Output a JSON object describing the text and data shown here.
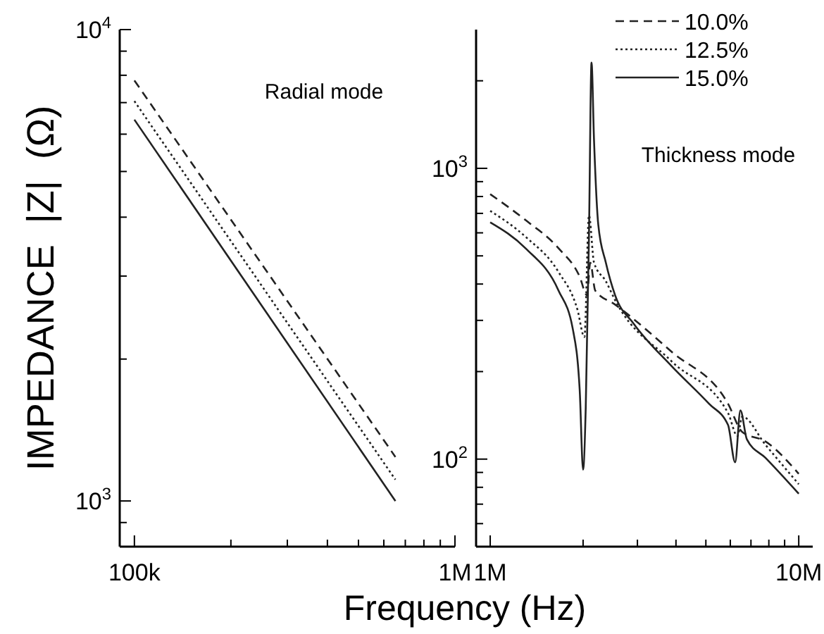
{
  "chart_data": [
    {
      "type": "line",
      "ylabel": "IMPEDANCE  |Z|  (Ω)",
      "log": "xy",
      "grid": false,
      "legend": false,
      "annotations": [
        "Radial mode"
      ],
      "x": [
        100000,
        652000
      ],
      "xlim": [
        90000,
        1000000
      ],
      "xticks": [
        {
          "value": 100000,
          "label": "100k"
        },
        {
          "value": 200000,
          "label": null
        },
        {
          "value": 300000,
          "label": null
        },
        {
          "value": 400000,
          "label": null
        },
        {
          "value": 500000,
          "label": null
        },
        {
          "value": 600000,
          "label": null
        },
        {
          "value": 700000,
          "label": null
        },
        {
          "value": 800000,
          "label": null
        },
        {
          "value": 900000,
          "label": null
        },
        {
          "value": 1000000,
          "label": "1M"
        }
      ],
      "ylim": [
        800,
        10000
      ],
      "yticks": [
        {
          "value": 900,
          "label": null
        },
        {
          "value": 1000,
          "label": "10$^{3}$"
        },
        {
          "value": 2000,
          "label": null
        },
        {
          "value": 3000,
          "label": null
        },
        {
          "value": 4000,
          "label": null
        },
        {
          "value": 5000,
          "label": null
        },
        {
          "value": 6000,
          "label": null
        },
        {
          "value": 7000,
          "label": null
        },
        {
          "value": 8000,
          "label": null
        },
        {
          "value": 9000,
          "label": null
        },
        {
          "value": 10000,
          "label": "10$^{4}$"
        }
      ],
      "series": [
        {
          "color": "#222222",
          "line_style": "dashed",
          "values": [
            7800,
            1240
          ]
        },
        {
          "color": "#222222",
          "line_style": "dotted",
          "values": [
            7050,
            1110
          ]
        },
        {
          "color": "#222222",
          "line_style": "solid",
          "values": [
            6440,
            1000
          ]
        }
      ]
    },
    {
      "type": "line",
      "xlabel": "Frequency (Hz)",
      "log": "xy",
      "grid": false,
      "legend": "top right",
      "annotations": [
        "Thickness mode"
      ],
      "xlim": [
        900000,
        11100000
      ],
      "xticks": [
        {
          "value": 1000000,
          "label": "1M"
        },
        {
          "value": 2000000,
          "label": null
        },
        {
          "value": 3000000,
          "label": null
        },
        {
          "value": 4000000,
          "label": null
        },
        {
          "value": 5000000,
          "label": null
        },
        {
          "value": 6000000,
          "label": null
        },
        {
          "value": 7000000,
          "label": null
        },
        {
          "value": 8000000,
          "label": null
        },
        {
          "value": 9000000,
          "label": null
        },
        {
          "value": 10000000,
          "label": "10M"
        }
      ],
      "ylim": [
        50,
        3000
      ],
      "yticks": [
        {
          "value": 60,
          "label": null
        },
        {
          "value": 70,
          "label": null
        },
        {
          "value": 80,
          "label": null
        },
        {
          "value": 90,
          "label": null
        },
        {
          "value": 100,
          "label": "10$^{2}$"
        },
        {
          "value": 200,
          "label": null
        },
        {
          "value": 300,
          "label": null
        },
        {
          "value": 400,
          "label": null
        },
        {
          "value": 500,
          "label": null
        },
        {
          "value": 600,
          "label": null
        },
        {
          "value": 700,
          "label": null
        },
        {
          "value": 800,
          "label": null
        },
        {
          "value": 900,
          "label": null
        },
        {
          "value": 1000,
          "label": "10$^{3}$"
        },
        {
          "value": 2000,
          "label": null
        }
      ],
      "series": [
        {
          "name": "10.0%",
          "color": "#222222",
          "line_style": "dashed",
          "x": [
            1000000,
            1301000,
            1665000,
            1950000,
            2060000,
            2110000,
            2190000,
            2540000,
            3870000,
            5900000,
            6560000,
            7800000,
            10000000
          ],
          "values": [
            815,
            664,
            531,
            424,
            366,
            474,
            380,
            340,
            234,
            155,
            124,
            115,
            89
          ]
        },
        {
          "name": "12.5%",
          "color": "#222222",
          "line_style": "dotted",
          "x": [
            1000000,
            1301000,
            1665000,
            1917000,
            2020000,
            2090000,
            2170000,
            2370000,
            2540000,
            3870000,
            5900000,
            6330000,
            6560000,
            7800000,
            10000000
          ],
          "values": [
            714,
            582,
            440,
            327,
            263,
            689,
            474,
            409,
            352,
            217,
            144,
            120,
            140,
            112,
            82
          ]
        },
        {
          "name": "15.0%",
          "color": "#222222",
          "line_style": "solid",
          "x": [
            1000000,
            1301000,
            1665000,
            1850000,
            1950000,
            2000000,
            2040000,
            2090000,
            2130000,
            2170000,
            2240000,
            2370000,
            2540000,
            2920000,
            3870000,
            5120000,
            5900000,
            6220000,
            6470000,
            6790000,
            7800000,
            10000000
          ],
          "values": [
            652,
            531,
            380,
            282,
            173,
            92,
            150,
            593,
            2310,
            1250,
            640,
            474,
            366,
            292,
            209,
            155,
            131,
            97.5,
            147,
            117,
            101,
            76
          ]
        }
      ]
    }
  ]
}
